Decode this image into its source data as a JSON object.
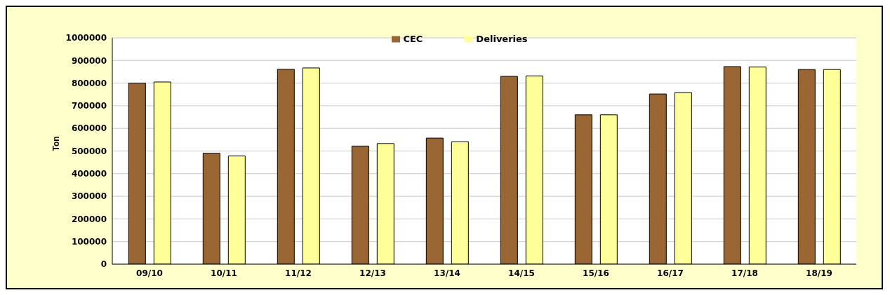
{
  "chart_data": {
    "type": "bar",
    "ylabel": "Ton",
    "categories": [
      "09/10",
      "10/11",
      "11/12",
      "12/13",
      "13/14",
      "14/15",
      "15/16",
      "16/17",
      "17/18",
      "18/19"
    ],
    "series": [
      {
        "name": "CEC",
        "color": "#996633",
        "values": [
          800000,
          490000,
          861000,
          522000,
          557000,
          830000,
          660000,
          752000,
          873000,
          860000
        ]
      },
      {
        "name": "Deliveries",
        "color": "#ffff99",
        "values": [
          805000,
          478000,
          867000,
          533000,
          541000,
          832000,
          660000,
          758000,
          871000,
          860000
        ]
      }
    ],
    "ylim": [
      0,
      1000000
    ],
    "yticks": [
      0,
      100000,
      200000,
      300000,
      400000,
      500000,
      600000,
      700000,
      800000,
      900000,
      1000000
    ],
    "grid": "y",
    "legend": "top"
  }
}
